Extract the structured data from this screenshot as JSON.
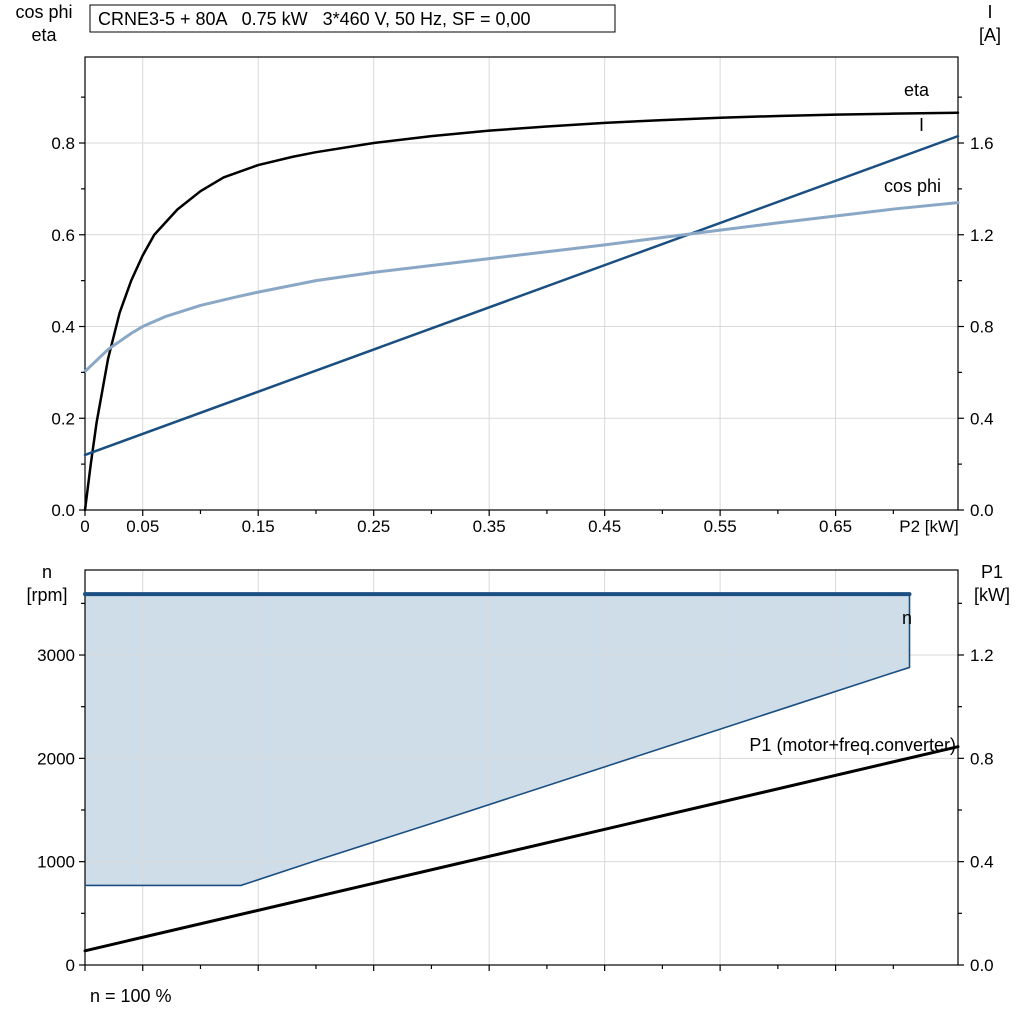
{
  "chart_data": [
    {
      "type": "line",
      "name": "motor-performance-curves",
      "title": "CRNE3-5 + 80A   0.75 kW   3*460 V, 50 Hz, SF = 0,00",
      "x_axis": {
        "label": "P2 [kW]",
        "xlim": [
          0,
          0.756
        ],
        "ticks": [
          0,
          0.05,
          0.15,
          0.25,
          0.35,
          0.45,
          0.55,
          0.65
        ],
        "tick_labels": [
          "0",
          "0.05",
          "0.15",
          "0.25",
          "0.35",
          "0.45",
          "0.55",
          "0.65"
        ],
        "minor_ticks": [
          0.1,
          0.2,
          0.3,
          0.4,
          0.5,
          0.6,
          0.7
        ],
        "grid": true
      },
      "left_axis": {
        "label_lines": [
          "cos phi",
          "eta"
        ],
        "ylim": [
          0,
          0.9875
        ],
        "ticks": [
          0,
          0.2,
          0.4,
          0.6,
          0.8
        ],
        "tick_labels": [
          "0.0",
          "0.2",
          "0.4",
          "0.6",
          "0.8"
        ],
        "minor_ticks": [
          0.1,
          0.3,
          0.5,
          0.7,
          0.9
        ]
      },
      "right_axis": {
        "label_lines": [
          "I",
          "[A]"
        ],
        "ylim": [
          0,
          1.975
        ],
        "ticks": [
          0,
          0.4,
          0.8,
          1.2,
          1.6
        ],
        "tick_labels": [
          "0.0",
          "0.4",
          "0.8",
          "1.2",
          "1.6"
        ],
        "minor_ticks": [
          0.2,
          0.6,
          1.0,
          1.4,
          1.8
        ]
      },
      "series": [
        {
          "name": "eta",
          "label": "eta",
          "axis": "left",
          "color": "#000000",
          "width": 2.5,
          "x": [
            0,
            0.005,
            0.01,
            0.02,
            0.03,
            0.04,
            0.05,
            0.06,
            0.08,
            0.1,
            0.12,
            0.15,
            0.18,
            0.2,
            0.25,
            0.3,
            0.35,
            0.4,
            0.45,
            0.5,
            0.55,
            0.6,
            0.65,
            0.7,
            0.756
          ],
          "y": [
            0,
            0.1,
            0.19,
            0.33,
            0.43,
            0.5,
            0.555,
            0.6,
            0.655,
            0.695,
            0.725,
            0.752,
            0.77,
            0.78,
            0.8,
            0.815,
            0.827,
            0.836,
            0.844,
            0.85,
            0.855,
            0.859,
            0.862,
            0.864,
            0.866
          ]
        },
        {
          "name": "I",
          "label": "I",
          "axis": "right",
          "color": "#1b4f82",
          "width": 2.5,
          "x": [
            0,
            0.756
          ],
          "y": [
            0.24,
            1.63
          ]
        },
        {
          "name": "cos-phi",
          "label": "cos phi",
          "axis": "left",
          "color": "#8aa8c6",
          "width": 3,
          "x": [
            0,
            0.02,
            0.04,
            0.05,
            0.07,
            0.1,
            0.13,
            0.15,
            0.2,
            0.25,
            0.3,
            0.35,
            0.4,
            0.45,
            0.5,
            0.55,
            0.6,
            0.65,
            0.7,
            0.756
          ],
          "y": [
            0.302,
            0.35,
            0.385,
            0.4,
            0.422,
            0.446,
            0.464,
            0.475,
            0.5,
            0.518,
            0.533,
            0.548,
            0.563,
            0.578,
            0.594,
            0.61,
            0.626,
            0.641,
            0.656,
            0.67
          ]
        }
      ]
    },
    {
      "type": "line",
      "name": "speed-and-input-power",
      "footnote": "n = 100 %",
      "x_axis": {
        "label": "",
        "xlim": [
          0,
          0.756
        ],
        "ticks": [
          0,
          0.05,
          0.15,
          0.25,
          0.35,
          0.45,
          0.55,
          0.65
        ],
        "tick_labels": [],
        "minor_ticks": [
          0.1,
          0.2,
          0.3,
          0.4,
          0.5,
          0.6,
          0.7
        ],
        "grid": true
      },
      "left_axis": {
        "label_lines": [
          "n",
          "[rpm]"
        ],
        "ylim": [
          0,
          3823
        ],
        "ticks": [
          0,
          1000,
          2000,
          3000
        ],
        "tick_labels": [
          "0",
          "1000",
          "2000",
          "3000"
        ],
        "minor_ticks": [
          500,
          1500,
          2500,
          3500
        ]
      },
      "right_axis": {
        "label_lines": [
          "P1",
          "[kW]"
        ],
        "ylim": [
          0,
          1.529
        ],
        "ticks": [
          0,
          0.4,
          0.8,
          1.2
        ],
        "tick_labels": [
          "0.0",
          "0.4",
          "0.8",
          "1.2"
        ],
        "minor_ticks": [
          0.2,
          0.6,
          1.0,
          1.4
        ]
      },
      "band": {
        "name": "speed-range",
        "label": "n",
        "fill": "#cfdde9",
        "stroke": "#1b4f82",
        "upper_x": [
          0,
          0.714
        ],
        "upper_y": [
          3590,
          3590
        ],
        "lower_x": [
          0,
          0.135,
          0.2,
          0.3,
          0.4,
          0.5,
          0.6,
          0.7,
          0.714
        ],
        "lower_y": [
          770,
          770,
          1010,
          1370,
          1735,
          2100,
          2465,
          2830,
          2880
        ]
      },
      "series": [
        {
          "name": "P1",
          "label": "P1 (motor+freq.converter)",
          "axis": "right",
          "color": "#000000",
          "width": 3,
          "x": [
            0,
            0.756
          ],
          "y": [
            0.055,
            0.845
          ]
        }
      ]
    }
  ]
}
